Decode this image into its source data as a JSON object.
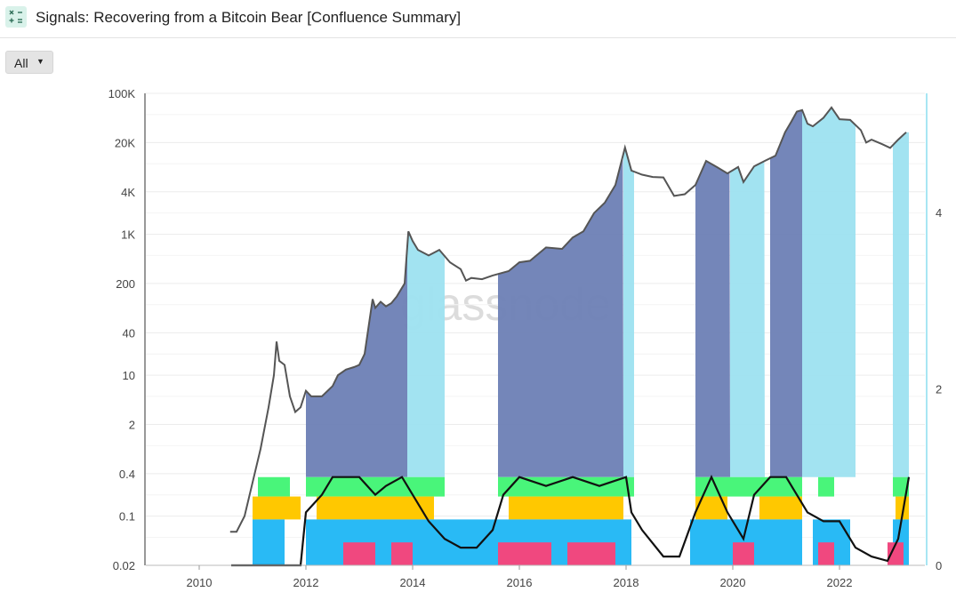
{
  "header": {
    "title": "Signals: Recovering from a Bitcoin Bear [Confluence Summary]",
    "icon": "calculator-icon"
  },
  "filter": {
    "label": "All",
    "icon": "caret-down-icon"
  },
  "watermark": "glassnode",
  "colors": {
    "price": "#555555",
    "signal_line": "#111111",
    "band_dark": "#6d7fb5",
    "band_light": "#9de2f0",
    "green": "#49f57a",
    "yellow": "#ffc800",
    "blue": "#29baf5",
    "pink": "#f0487f",
    "right_axis_line": "#a8e6f3"
  },
  "chart_data": {
    "type": "line",
    "x_axis": {
      "ticks": [
        "2010",
        "2012",
        "2014",
        "2016",
        "2018",
        "2020",
        "2022"
      ],
      "range": [
        2009.0,
        2023.6
      ]
    },
    "y_left": {
      "scale": "log",
      "ticks": [
        "100K",
        "20K",
        "4K",
        "1K",
        "200",
        "40",
        "10",
        "2",
        "0.4",
        "0.1",
        "0.02"
      ],
      "range": [
        0.02,
        100000
      ]
    },
    "y_right": {
      "ticks": [
        "4",
        "2",
        "0"
      ],
      "range": [
        0,
        5.35
      ]
    },
    "series": [
      {
        "axis": "left",
        "points": [
          [
            2010.58,
            0.06
          ],
          [
            2010.7,
            0.06
          ],
          [
            2010.85,
            0.1
          ],
          [
            2011.0,
            0.3
          ],
          [
            2011.15,
            0.9
          ],
          [
            2011.3,
            3.5
          ],
          [
            2011.4,
            10
          ],
          [
            2011.45,
            30
          ],
          [
            2011.5,
            16
          ],
          [
            2011.6,
            14
          ],
          [
            2011.7,
            5
          ],
          [
            2011.8,
            3
          ],
          [
            2011.9,
            3.5
          ],
          [
            2012.0,
            6
          ],
          [
            2012.1,
            5
          ],
          [
            2012.3,
            5
          ],
          [
            2012.5,
            7
          ],
          [
            2012.6,
            10
          ],
          [
            2012.75,
            12
          ],
          [
            2012.9,
            13
          ],
          [
            2013.0,
            14
          ],
          [
            2013.1,
            20
          ],
          [
            2013.25,
            120
          ],
          [
            2013.3,
            90
          ],
          [
            2013.4,
            110
          ],
          [
            2013.5,
            95
          ],
          [
            2013.6,
            105
          ],
          [
            2013.7,
            130
          ],
          [
            2013.85,
            200
          ],
          [
            2013.92,
            1100
          ],
          [
            2014.0,
            800
          ],
          [
            2014.1,
            600
          ],
          [
            2014.3,
            500
          ],
          [
            2014.5,
            600
          ],
          [
            2014.7,
            400
          ],
          [
            2014.9,
            320
          ],
          [
            2015.0,
            220
          ],
          [
            2015.1,
            240
          ],
          [
            2015.3,
            230
          ],
          [
            2015.5,
            260
          ],
          [
            2015.8,
            300
          ],
          [
            2016.0,
            400
          ],
          [
            2016.2,
            420
          ],
          [
            2016.5,
            650
          ],
          [
            2016.8,
            620
          ],
          [
            2017.0,
            900
          ],
          [
            2017.2,
            1100
          ],
          [
            2017.4,
            2000
          ],
          [
            2017.6,
            2800
          ],
          [
            2017.8,
            5000
          ],
          [
            2017.98,
            17000
          ],
          [
            2018.1,
            8000
          ],
          [
            2018.3,
            7000
          ],
          [
            2018.5,
            6500
          ],
          [
            2018.7,
            6400
          ],
          [
            2018.9,
            3500
          ],
          [
            2019.1,
            3700
          ],
          [
            2019.3,
            5000
          ],
          [
            2019.5,
            11000
          ],
          [
            2019.7,
            9000
          ],
          [
            2019.9,
            7300
          ],
          [
            2020.1,
            9000
          ],
          [
            2020.2,
            5500
          ],
          [
            2020.4,
            9200
          ],
          [
            2020.6,
            11000
          ],
          [
            2020.8,
            13000
          ],
          [
            2020.98,
            28000
          ],
          [
            2021.1,
            40000
          ],
          [
            2021.2,
            55000
          ],
          [
            2021.3,
            58000
          ],
          [
            2021.4,
            37000
          ],
          [
            2021.5,
            34000
          ],
          [
            2021.7,
            45000
          ],
          [
            2021.85,
            63000
          ],
          [
            2022.0,
            43000
          ],
          [
            2022.2,
            42000
          ],
          [
            2022.4,
            30000
          ],
          [
            2022.5,
            20000
          ],
          [
            2022.6,
            22000
          ],
          [
            2022.8,
            19000
          ],
          [
            2022.95,
            16800
          ],
          [
            2023.1,
            22000
          ],
          [
            2023.25,
            28000
          ]
        ]
      },
      {
        "axis": "right",
        "points": [
          [
            2010.6,
            0
          ],
          [
            2011.9,
            0
          ],
          [
            2012.0,
            0.6
          ],
          [
            2012.3,
            0.8
          ],
          [
            2012.5,
            1.0
          ],
          [
            2012.8,
            1.0
          ],
          [
            2013.0,
            1.0
          ],
          [
            2013.3,
            0.8
          ],
          [
            2013.5,
            0.9
          ],
          [
            2013.8,
            1.0
          ],
          [
            2014.0,
            0.8
          ],
          [
            2014.3,
            0.5
          ],
          [
            2014.6,
            0.3
          ],
          [
            2014.9,
            0.2
          ],
          [
            2015.2,
            0.2
          ],
          [
            2015.5,
            0.4
          ],
          [
            2015.7,
            0.8
          ],
          [
            2016.0,
            1.0
          ],
          [
            2016.5,
            0.9
          ],
          [
            2017.0,
            1.0
          ],
          [
            2017.5,
            0.9
          ],
          [
            2018.0,
            1.0
          ],
          [
            2018.1,
            0.6
          ],
          [
            2018.3,
            0.4
          ],
          [
            2018.7,
            0.1
          ],
          [
            2019.0,
            0.1
          ],
          [
            2019.3,
            0.6
          ],
          [
            2019.6,
            1.0
          ],
          [
            2019.9,
            0.6
          ],
          [
            2020.2,
            0.3
          ],
          [
            2020.4,
            0.8
          ],
          [
            2020.7,
            1.0
          ],
          [
            2021.0,
            1.0
          ],
          [
            2021.4,
            0.6
          ],
          [
            2021.7,
            0.5
          ],
          [
            2022.0,
            0.5
          ],
          [
            2022.3,
            0.2
          ],
          [
            2022.6,
            0.1
          ],
          [
            2022.9,
            0.05
          ],
          [
            2023.1,
            0.3
          ],
          [
            2023.3,
            1.0
          ]
        ]
      }
    ],
    "signal_bands": [
      {
        "kind": "band_dark",
        "x": [
          [
            2012.0,
            2013.9
          ],
          [
            2015.6,
            2017.95
          ],
          [
            2019.3,
            2019.95
          ],
          [
            2020.7,
            2021.3
          ]
        ]
      },
      {
        "kind": "band_light",
        "x": [
          [
            2013.9,
            2014.6
          ],
          [
            2017.95,
            2018.15
          ],
          [
            2019.95,
            2020.6
          ],
          [
            2021.3,
            2022.3
          ],
          [
            2023.0,
            2023.3
          ]
        ]
      },
      {
        "kind": "green",
        "x": [
          [
            2011.1,
            2011.7
          ],
          [
            2012.0,
            2014.6
          ],
          [
            2015.6,
            2018.15
          ],
          [
            2019.3,
            2021.3
          ],
          [
            2021.6,
            2021.9
          ],
          [
            2023.0,
            2023.3
          ]
        ]
      },
      {
        "kind": "yellow",
        "x": [
          [
            2011.0,
            2011.9
          ],
          [
            2012.2,
            2014.4
          ],
          [
            2015.8,
            2017.95
          ],
          [
            2019.3,
            2019.9
          ],
          [
            2020.5,
            2021.3
          ],
          [
            2023.05,
            2023.3
          ]
        ]
      },
      {
        "kind": "blue",
        "x": [
          [
            2011.0,
            2011.6
          ],
          [
            2012.0,
            2018.1
          ],
          [
            2019.2,
            2021.3
          ],
          [
            2021.5,
            2022.2
          ],
          [
            2023.0,
            2023.3
          ]
        ]
      },
      {
        "kind": "pink",
        "x": [
          [
            2012.7,
            2013.3
          ],
          [
            2013.6,
            2014.0
          ],
          [
            2015.6,
            2016.6
          ],
          [
            2016.9,
            2017.8
          ],
          [
            2020.0,
            2020.4
          ],
          [
            2021.6,
            2021.9
          ],
          [
            2022.9,
            2023.2
          ]
        ]
      }
    ]
  }
}
